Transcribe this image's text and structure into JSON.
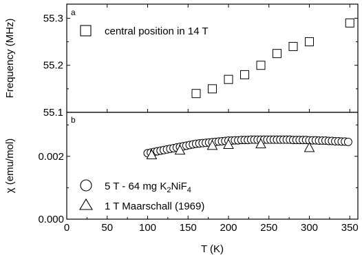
{
  "chart_data": [
    {
      "type": "scatter",
      "panel_label": "a",
      "xlabel": "",
      "ylabel": "Frequency (MHz)",
      "xlim": [
        0,
        360
      ],
      "ylim": [
        55.1,
        55.33
      ],
      "yticks": [
        "55.1",
        "55.2",
        "55.3"
      ],
      "legend_placement": "top-left",
      "series": [
        {
          "name": "central position in 14 T",
          "marker": "square",
          "x": [
            160,
            180,
            200,
            220,
            240,
            260,
            280,
            300,
            350
          ],
          "y": [
            55.14,
            55.15,
            55.17,
            55.18,
            55.2,
            55.225,
            55.24,
            55.25,
            55.29
          ]
        }
      ]
    },
    {
      "type": "scatter",
      "panel_label": "b",
      "xlabel": "T (K)",
      "ylabel": "χ (emu/mol)",
      "xlim": [
        0,
        360
      ],
      "ylim": [
        0,
        0.0034
      ],
      "xticks": [
        "0",
        "50",
        "100",
        "150",
        "200",
        "250",
        "300",
        "350"
      ],
      "yticks": [
        "0.000",
        "0.002"
      ],
      "legend_placement": "bottom-left",
      "series": [
        {
          "name_prefix": "5 T - 64 mg K",
          "name_sub1": "2",
          "name_mid": "NiF",
          "name_sub2": "4",
          "marker": "circle",
          "x": [
            100,
            104,
            108,
            112,
            116,
            120,
            124,
            128,
            132,
            136,
            140,
            144,
            148,
            152,
            156,
            160,
            164,
            168,
            172,
            176,
            180,
            184,
            188,
            192,
            196,
            200,
            204,
            208,
            212,
            216,
            220,
            224,
            228,
            232,
            236,
            240,
            244,
            248,
            252,
            256,
            260,
            264,
            268,
            272,
            276,
            280,
            284,
            288,
            292,
            296,
            300,
            304,
            308,
            312,
            316,
            320,
            324,
            328,
            332,
            336,
            340,
            344,
            348
          ],
          "y": [
            0.0021,
            0.00212,
            0.00214,
            0.00216,
            0.00218,
            0.0022,
            0.00222,
            0.00224,
            0.00226,
            0.00228,
            0.0023,
            0.00232,
            0.00234,
            0.00236,
            0.00238,
            0.0024,
            0.00241,
            0.00242,
            0.00243,
            0.00244,
            0.00245,
            0.00246,
            0.00247,
            0.00248,
            0.00249,
            0.0025,
            0.0025,
            0.00251,
            0.00251,
            0.00252,
            0.00252,
            0.00252,
            0.00253,
            0.00253,
            0.00253,
            0.00253,
            0.00253,
            0.00253,
            0.00253,
            0.00253,
            0.00253,
            0.00253,
            0.00253,
            0.00253,
            0.00253,
            0.00252,
            0.00252,
            0.00252,
            0.00252,
            0.00252,
            0.00251,
            0.00251,
            0.00251,
            0.0025,
            0.0025,
            0.0025,
            0.00249,
            0.00249,
            0.00248,
            0.00248,
            0.00247,
            0.00247,
            0.00246
          ]
        },
        {
          "name": "1 T Maarschall (1969)",
          "marker": "triangle",
          "x": [
            105,
            140,
            180,
            200,
            240,
            300
          ],
          "y": [
            0.00205,
            0.0022,
            0.00235,
            0.00238,
            0.0024,
            0.00228
          ]
        }
      ]
    }
  ]
}
